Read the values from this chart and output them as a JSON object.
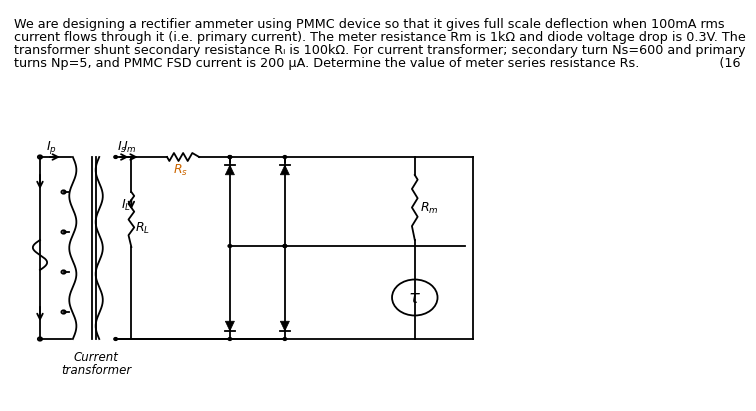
{
  "text_line1": "We are designing a rectifier ammeter using PMMC device so that it gives full scale deflection when 100mA rms",
  "text_line2": "current flows through it (i.e. primary current). The meter resistance Rm is 1kΩ and diode voltage drop is 0.3V. The",
  "text_line3": "transformer shunt secondary resistance Rₗ is 100kΩ. For current transformer; secondary turn Ns=600 and primary",
  "text_line4": "turns Np=5, and PMMC FSD current is 200 μA. Determine the value of meter series resistance Rs.                    (16",
  "bg_color": "#ffffff",
  "fg_color": "#000000",
  "font_size_text": 9.2
}
